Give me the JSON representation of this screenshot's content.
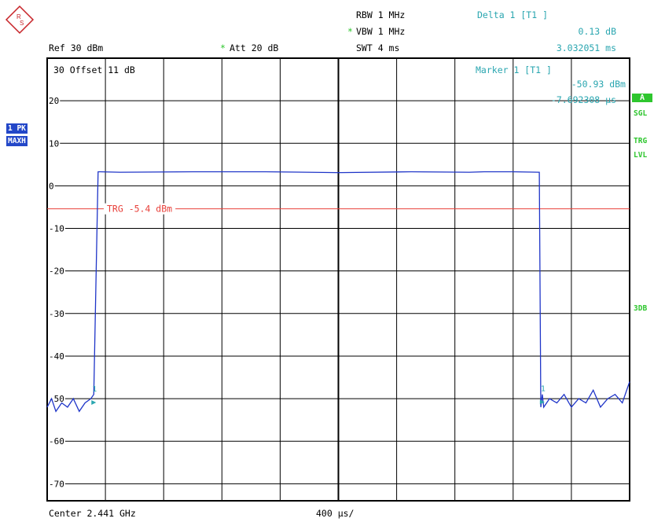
{
  "header": {
    "rbw": "RBW 1 MHz",
    "vbw_star": "*",
    "vbw": "VBW 1 MHz",
    "swt": "SWT 4 ms",
    "ref": "Ref  30 dBm",
    "att_star": "*",
    "att": "Att  20 dB",
    "offset": "30  Offset   11 dB"
  },
  "markers": {
    "delta_title": "Delta 1 [T1 ]",
    "delta_level": "0.13 dB",
    "delta_time": "3.032051 ms",
    "marker_title": "Marker 1 [T1 ]",
    "marker_level": "-50.93 dBm",
    "marker_time": "-7.692308 µs"
  },
  "side_left": {
    "trace": "1 PK",
    "detector": "MAXH"
  },
  "side_right": {
    "a": "A",
    "sgl": "SGL",
    "trg": "TRG",
    "lvl": "LVL",
    "db3": "3DB"
  },
  "footer": {
    "center": "Center 2.441 GHz",
    "span": "400 µs/"
  },
  "trigger_label": "TRG -5.4 dBm",
  "colors": {
    "trace": "#1f35c8",
    "trigger": "#e8403a",
    "grid": "#000000",
    "annotation": "#2aa6b0",
    "accent": "#2ec62e"
  },
  "chart_data": {
    "type": "line",
    "ylim": [
      -74,
      30
    ],
    "xlim": [
      0,
      4
    ],
    "y_ticks": [
      30,
      20,
      10,
      0,
      -10,
      -20,
      -30,
      -40,
      -50,
      -60,
      -70
    ],
    "y_tick_labels": [
      "30",
      "20",
      "10",
      "0",
      "-10",
      "-20",
      "-30",
      "-40",
      "-50",
      "-60",
      "-70"
    ],
    "x_grid_divisions": 10,
    "trigger_level": -5.4,
    "series": [
      {
        "x": [
          0.0,
          0.03,
          0.06,
          0.1,
          0.14,
          0.18,
          0.22,
          0.26,
          0.3,
          0.32,
          0.35,
          0.36,
          0.5,
          1.0,
          1.5,
          2.0,
          2.5,
          2.9,
          3.0,
          3.2,
          3.38,
          3.39,
          3.4,
          3.41,
          3.45,
          3.5,
          3.55,
          3.6,
          3.65,
          3.7,
          3.75,
          3.8,
          3.85,
          3.9,
          3.95,
          4.0
        ],
        "y": [
          -52,
          -50,
          -53,
          -51,
          -52,
          -50,
          -53,
          -51,
          -50,
          -49,
          3.3,
          3.3,
          3.2,
          3.3,
          3.3,
          3.1,
          3.3,
          3.2,
          3.3,
          3.3,
          3.2,
          -52,
          -49,
          -52,
          -50,
          -51,
          -49,
          -52,
          -50,
          -51,
          -48,
          -52,
          -50,
          -49,
          -51,
          -46
        ]
      }
    ],
    "marker_points": [
      {
        "label": "1",
        "x": 0.32,
        "y": -50.9
      },
      {
        "label": "1",
        "x": 3.4,
        "y": -50.8
      }
    ]
  }
}
